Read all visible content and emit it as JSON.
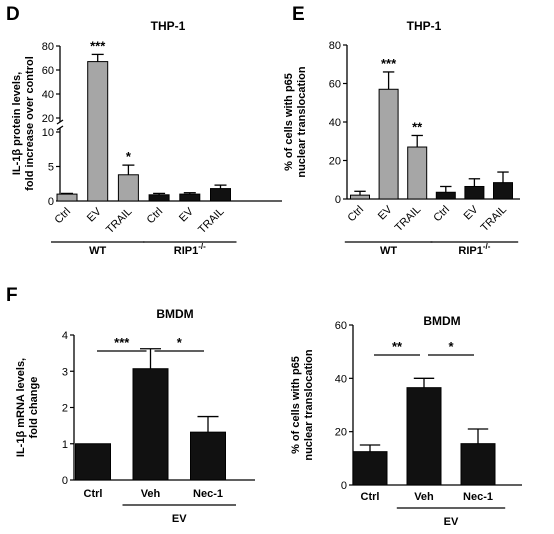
{
  "chart_data": [
    {
      "panel": "D",
      "type": "bar",
      "title": "THP-1",
      "ylabel_lines": [
        "IL-1β protein levels,",
        "fold increase over control"
      ],
      "axis": "broken",
      "ylim_low": [
        0,
        10
      ],
      "yticks_low": [
        0,
        5,
        10
      ],
      "ylim_high": [
        20,
        80
      ],
      "yticks_high": [
        20,
        40,
        60,
        80
      ],
      "categories": [
        "Ctrl",
        "EV",
        "TRAIL",
        "Ctrl",
        "EV",
        "TRAIL"
      ],
      "values": [
        1.0,
        67,
        3.8,
        0.9,
        1.0,
        1.8
      ],
      "errors": [
        0.1,
        6,
        1.4,
        0.2,
        0.2,
        0.5
      ],
      "colors": [
        "#a6a6a6",
        "#a6a6a6",
        "#a6a6a6",
        "#111111",
        "#111111",
        "#111111"
      ],
      "significance": [
        "",
        "***",
        "*",
        "",
        "",
        ""
      ],
      "groups": [
        {
          "label": "WT",
          "start": 0,
          "end": 2
        },
        {
          "label": "RIP1",
          "sup": "-/-",
          "start": 3,
          "end": 5
        }
      ]
    },
    {
      "panel": "E",
      "type": "bar",
      "title": "THP-1",
      "ylabel_lines": [
        "% of cells with p65",
        "nuclear translocation"
      ],
      "ylim": [
        0,
        80
      ],
      "yticks": [
        0,
        20,
        40,
        60,
        80
      ],
      "categories": [
        "Ctrl",
        "EV",
        "TRAIL",
        "Ctrl",
        "EV",
        "TRAIL"
      ],
      "values": [
        2,
        57,
        27,
        3.5,
        6.5,
        8.5
      ],
      "errors": [
        2,
        9,
        6,
        3,
        4,
        5.5
      ],
      "colors": [
        "#a6a6a6",
        "#a6a6a6",
        "#a6a6a6",
        "#111111",
        "#111111",
        "#111111"
      ],
      "significance": [
        "",
        "***",
        "**",
        "",
        "",
        ""
      ],
      "groups": [
        {
          "label": "WT",
          "start": 0,
          "end": 2
        },
        {
          "label": "RIP1",
          "sup": "-/-",
          "start": 3,
          "end": 5
        }
      ]
    },
    {
      "panel": "F",
      "type": "bar",
      "title": "BMDM",
      "ylabel_lines": [
        "IL-1β mRNA levels,",
        "fold change"
      ],
      "ylim": [
        0,
        4
      ],
      "yticks": [
        0,
        1,
        2,
        3,
        4
      ],
      "categories": [
        "Ctrl",
        "Veh",
        "Nec-1"
      ],
      "values": [
        1.0,
        3.07,
        1.32
      ],
      "errors": [
        0,
        0.55,
        0.43
      ],
      "colors": [
        "#111111",
        "#111111",
        "#111111"
      ],
      "comparisons": [
        {
          "from": 0,
          "to": 1,
          "label": "***"
        },
        {
          "from": 1,
          "to": 2,
          "label": "*"
        }
      ],
      "groups": [
        {
          "label": "EV",
          "start": 1,
          "end": 2
        }
      ]
    },
    {
      "panel": "",
      "type": "bar",
      "title": "BMDM",
      "ylabel_lines": [
        "% of cells with p65",
        "nuclear translocation"
      ],
      "ylim": [
        0,
        60
      ],
      "yticks": [
        0,
        20,
        40,
        60
      ],
      "categories": [
        "Ctrl",
        "Veh",
        "Nec-1"
      ],
      "values": [
        12.5,
        36.5,
        15.5
      ],
      "errors": [
        2.5,
        3.5,
        5.5
      ],
      "colors": [
        "#111111",
        "#111111",
        "#111111"
      ],
      "comparisons": [
        {
          "from": 0,
          "to": 1,
          "label": "**"
        },
        {
          "from": 1,
          "to": 2,
          "label": "*"
        }
      ],
      "groups": [
        {
          "label": "EV",
          "start": 1,
          "end": 2
        }
      ]
    }
  ]
}
